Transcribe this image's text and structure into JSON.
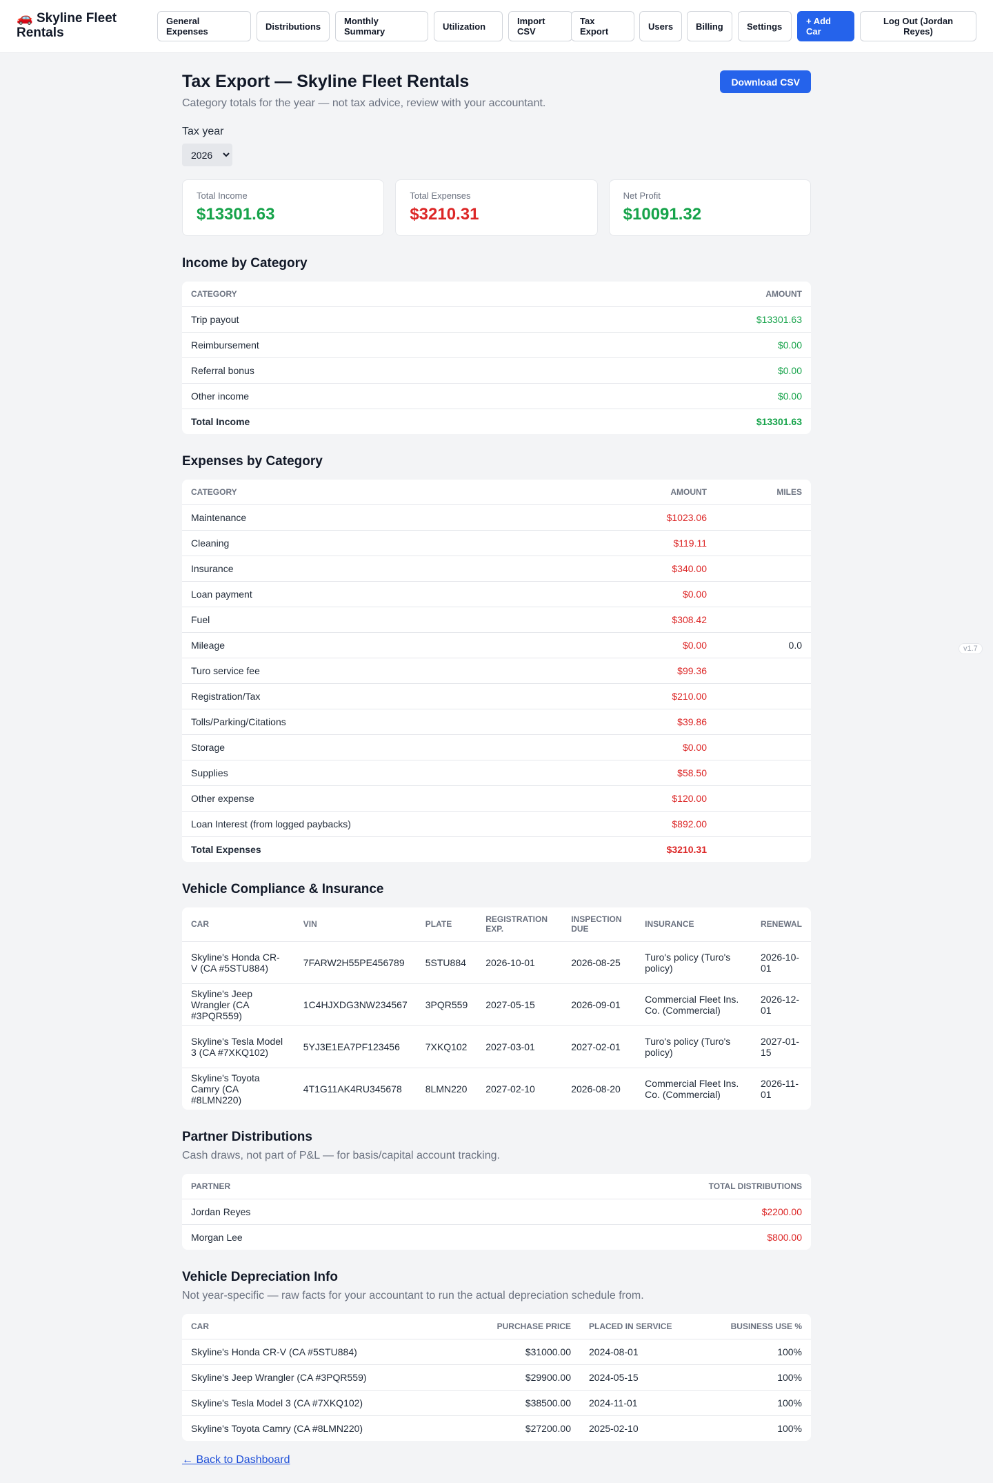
{
  "brand": {
    "icon": "car-emoji",
    "name": "Skyline Fleet Rentals",
    "icon_glyph": "🚗"
  },
  "nav": {
    "general_expenses": "General Expenses",
    "distributions": "Distributions",
    "monthly_summary": "Monthly Summary",
    "utilization": "Utilization",
    "import_csv": "Import CSV",
    "tax_export": "Tax Export",
    "users": "Users",
    "billing": "Billing",
    "settings": "Settings",
    "add_car": "+ Add Car",
    "logout": "Log Out (Jordan Reyes)"
  },
  "page": {
    "title": "Tax Export — Skyline Fleet Rentals",
    "subtitle": "Category totals for the year — not tax advice, review with your accountant.",
    "download_label": "Download CSV",
    "tax_year_label": "Tax year",
    "tax_year_value": "2026"
  },
  "summary": {
    "income_label": "Total Income",
    "income_value": "$13301.63",
    "expenses_label": "Total Expenses",
    "expenses_value": "$3210.31",
    "profit_label": "Net Profit",
    "profit_value": "$10091.32"
  },
  "income": {
    "heading": "Income by Category",
    "col_category": "Category",
    "col_amount": "Amount",
    "rows": [
      {
        "category": "Trip payout",
        "amount": "$13301.63"
      },
      {
        "category": "Reimbursement",
        "amount": "$0.00"
      },
      {
        "category": "Referral bonus",
        "amount": "$0.00"
      },
      {
        "category": "Other income",
        "amount": "$0.00"
      }
    ],
    "total_label": "Total Income",
    "total_value": "$13301.63"
  },
  "expenses": {
    "heading": "Expenses by Category",
    "col_category": "Category",
    "col_amount": "Amount",
    "col_miles": "Miles",
    "rows": [
      {
        "category": "Maintenance",
        "amount": "$1023.06",
        "miles": ""
      },
      {
        "category": "Cleaning",
        "amount": "$119.11",
        "miles": ""
      },
      {
        "category": "Insurance",
        "amount": "$340.00",
        "miles": ""
      },
      {
        "category": "Loan payment",
        "amount": "$0.00",
        "miles": ""
      },
      {
        "category": "Fuel",
        "amount": "$308.42",
        "miles": ""
      },
      {
        "category": "Mileage",
        "amount": "$0.00",
        "miles": "0.0"
      },
      {
        "category": "Turo service fee",
        "amount": "$99.36",
        "miles": ""
      },
      {
        "category": "Registration/Tax",
        "amount": "$210.00",
        "miles": ""
      },
      {
        "category": "Tolls/Parking/Citations",
        "amount": "$39.86",
        "miles": ""
      },
      {
        "category": "Storage",
        "amount": "$0.00",
        "miles": ""
      },
      {
        "category": "Supplies",
        "amount": "$58.50",
        "miles": ""
      },
      {
        "category": "Other expense",
        "amount": "$120.00",
        "miles": ""
      },
      {
        "category": "Loan Interest (from logged paybacks)",
        "amount": "$892.00",
        "miles": ""
      }
    ],
    "total_label": "Total Expenses",
    "total_value": "$3210.31"
  },
  "compliance": {
    "heading": "Vehicle Compliance & Insurance",
    "cols": {
      "car": "Car",
      "vin": "VIN",
      "plate": "Plate",
      "registration": "Registration Exp.",
      "inspection": "Inspection Due",
      "insurance": "Insurance",
      "renewal": "Renewal"
    },
    "rows": [
      {
        "car": "Skyline's Honda CR-V (CA #5STU884)",
        "vin": "7FARW2H55PE456789",
        "plate": "5STU884",
        "registration": "2026-10-01",
        "inspection": "2026-08-25",
        "insurance": "Turo's policy (Turo's policy)",
        "renewal": "2026-10-01"
      },
      {
        "car": "Skyline's Jeep Wrangler (CA #3PQR559)",
        "vin": "1C4HJXDG3NW234567",
        "plate": "3PQR559",
        "registration": "2027-05-15",
        "inspection": "2026-09-01",
        "insurance": "Commercial Fleet Ins. Co. (Commercial)",
        "renewal": "2026-12-01"
      },
      {
        "car": "Skyline's Tesla Model 3 (CA #7XKQ102)",
        "vin": "5YJ3E1EA7PF123456",
        "plate": "7XKQ102",
        "registration": "2027-03-01",
        "inspection": "2027-02-01",
        "insurance": "Turo's policy (Turo's policy)",
        "renewal": "2027-01-15"
      },
      {
        "car": "Skyline's Toyota Camry (CA #8LMN220)",
        "vin": "4T1G11AK4RU345678",
        "plate": "8LMN220",
        "registration": "2027-02-10",
        "inspection": "2026-08-20",
        "insurance": "Commercial Fleet Ins. Co. (Commercial)",
        "renewal": "2026-11-01"
      }
    ]
  },
  "distributions": {
    "heading": "Partner Distributions",
    "subtitle": "Cash draws, not part of P&L — for basis/capital account tracking.",
    "col_partner": "Partner",
    "col_total": "Total Distributions",
    "rows": [
      {
        "partner": "Jordan Reyes",
        "total": "$2200.00"
      },
      {
        "partner": "Morgan Lee",
        "total": "$800.00"
      }
    ]
  },
  "depreciation": {
    "heading": "Vehicle Depreciation Info",
    "subtitle": "Not year-specific — raw facts for your accountant to run the actual depreciation schedule from.",
    "cols": {
      "car": "Car",
      "price": "Purchase Price",
      "placed": "Placed in Service",
      "use": "Business Use %"
    },
    "rows": [
      {
        "car": "Skyline's Honda CR-V (CA #5STU884)",
        "price": "$31000.00",
        "placed": "2024-08-01",
        "use": "100%"
      },
      {
        "car": "Skyline's Jeep Wrangler (CA #3PQR559)",
        "price": "$29900.00",
        "placed": "2024-05-15",
        "use": "100%"
      },
      {
        "car": "Skyline's Tesla Model 3 (CA #7XKQ102)",
        "price": "$38500.00",
        "placed": "2024-11-01",
        "use": "100%"
      },
      {
        "car": "Skyline's Toyota Camry (CA #8LMN220)",
        "price": "$27200.00",
        "placed": "2025-02-10",
        "use": "100%"
      }
    ]
  },
  "footer": {
    "back_link": "← Back to Dashboard",
    "version": "v1.7"
  },
  "colors": {
    "accent": "#2563eb",
    "income": "#16a34a",
    "expense": "#dc2626"
  }
}
